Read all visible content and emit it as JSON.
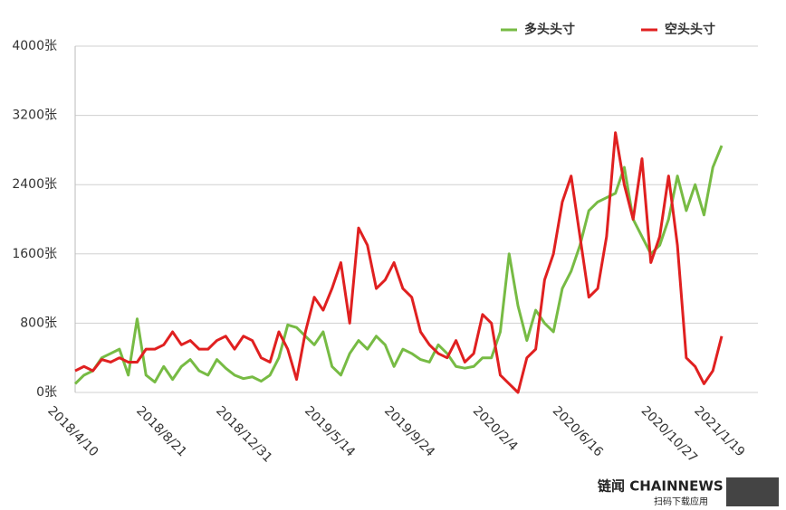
{
  "chart_data": {
    "type": "line",
    "categories": [
      "2018/4/10",
      null,
      null,
      null,
      null,
      null,
      null,
      null,
      null,
      null,
      "2018/8/21",
      null,
      null,
      null,
      null,
      null,
      null,
      null,
      null,
      "2018/12/31",
      null,
      null,
      null,
      null,
      null,
      null,
      null,
      null,
      null,
      "2019/5/14",
      null,
      null,
      null,
      null,
      null,
      null,
      null,
      null,
      "2019/9/24",
      null,
      null,
      null,
      null,
      null,
      null,
      null,
      null,
      null,
      "2020/2/4",
      null,
      null,
      null,
      null,
      null,
      null,
      null,
      null,
      "2020/6/16",
      null,
      null,
      null,
      null,
      null,
      null,
      null,
      null,
      null,
      "2020/10/27",
      null,
      null,
      null,
      null,
      null,
      "2021/1/19"
    ],
    "series": [
      {
        "name": "多头头寸",
        "color": "#77bb44",
        "values": [
          100,
          200,
          250,
          400,
          450,
          500,
          200,
          850,
          200,
          120,
          300,
          150,
          300,
          380,
          250,
          200,
          380,
          280,
          200,
          160,
          180,
          130,
          200,
          400,
          780,
          750,
          650,
          550,
          700,
          300,
          200,
          450,
          600,
          500,
          650,
          550,
          300,
          500,
          450,
          380,
          350,
          550,
          450,
          300,
          280,
          300,
          400,
          400,
          700,
          1600,
          1000,
          600,
          950,
          800,
          700,
          1200,
          1400,
          1700,
          2100,
          2200,
          2250,
          2300,
          2600,
          2000,
          1800,
          1600,
          1700,
          2000,
          2500,
          2100,
          2400,
          2050,
          2600,
          2850
        ]
      },
      {
        "name": "空头头寸",
        "color": "#e02020",
        "values": [
          250,
          300,
          250,
          380,
          350,
          400,
          350,
          350,
          500,
          500,
          550,
          700,
          550,
          600,
          500,
          500,
          600,
          650,
          500,
          650,
          600,
          400,
          350,
          700,
          500,
          150,
          700,
          1100,
          950,
          1200,
          1500,
          800,
          1900,
          1700,
          1200,
          1300,
          1500,
          1200,
          1100,
          700,
          550,
          450,
          400,
          600,
          350,
          450,
          900,
          800,
          200,
          100,
          0,
          400,
          500,
          1300,
          1600,
          2200,
          2500,
          1800,
          1100,
          1200,
          1800,
          3000,
          2400,
          2000,
          2700,
          1500,
          1800,
          2500,
          1700,
          400,
          300,
          100,
          250,
          650
        ]
      }
    ],
    "ylim": [
      0,
      4000
    ],
    "yticks": [
      {
        "value": 0,
        "label": "0张"
      },
      {
        "value": 800,
        "label": "800张"
      },
      {
        "value": 1600,
        "label": "1600张"
      },
      {
        "value": 2400,
        "label": "2400张"
      },
      {
        "value": 3200,
        "label": "3200张"
      },
      {
        "value": 4000,
        "label": "4000张"
      }
    ],
    "grid": true,
    "legend": "top-right"
  },
  "footer": {
    "brand": "链闻 CHAINNEWS",
    "caption": "扫码下载应用"
  }
}
